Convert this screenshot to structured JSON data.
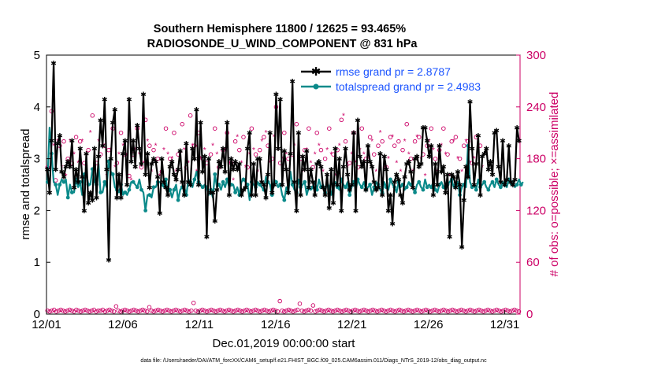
{
  "chart_data": {
    "type": "line",
    "title": "Southern Hemisphere 11800 / 12625 = 93.465%",
    "subtitle": "RADIOSONDE_U_WIND_COMPONENT @ 831 hPa",
    "xlabel": "Dec.01,2019 00:00:00 start",
    "ylabel": "rmse and totalspread",
    "y2label": "# of obs: o=possible; ×=assimilated",
    "footnote": "data file: /Users/raeder/DAI/ATM_forcXX/CAM6_setup/f.e21.FHIST_BGC.f09_025.CAM6assim.011/Diags_NTrS_2019-12/obs_diag_output.nc",
    "xlim": [
      1,
      32
    ],
    "ylim": [
      0,
      5
    ],
    "y2lim": [
      0,
      300
    ],
    "x_tick_labels": [
      "12/01",
      "12/06",
      "12/11",
      "12/16",
      "12/21",
      "12/26",
      "12/31"
    ],
    "x_tick_values": [
      1,
      6,
      11,
      16,
      21,
      26,
      31
    ],
    "y_ticks": [
      0,
      1,
      2,
      3,
      4,
      5
    ],
    "y2_ticks": [
      0,
      60,
      120,
      180,
      240,
      300
    ],
    "legend_position": "top-right",
    "colors": {
      "rmse": "#000000",
      "spread": "#0b8a8a",
      "obs": "#cc0066",
      "legend_text": "#1a53ff"
    },
    "series": [
      {
        "name": "rmse grand pr = 2.8787",
        "axis": "left",
        "marker": "star",
        "values": [
          2.8,
          2.35,
          3.35,
          4.85,
          2.8,
          3.3,
          3.45,
          2.75,
          2.65,
          2.85,
          2.95,
          2.85,
          3.35,
          2.45,
          2.8,
          2.55,
          3.2,
          2.65,
          2.0,
          3.1,
          2.15,
          2.35,
          2.2,
          3.2,
          2.25,
          3.05,
          3.75,
          3.25,
          4.15,
          2.8,
          1.05,
          3.0,
          3.7,
          3.95,
          2.25,
          2.7,
          2.25,
          3.1,
          3.35,
          2.5,
          4.15,
          2.95,
          3.35,
          2.85,
          3.65,
          3.2,
          2.9,
          4.25,
          2.7,
          3.1,
          2.45,
          2.9,
          3.0,
          2.95,
          2.65,
          1.95,
          3.0,
          2.55,
          2.45,
          2.3,
          2.85,
          2.95,
          2.7,
          2.6,
          2.8,
          3.15,
          2.55,
          2.3,
          3.3,
          2.55,
          2.5,
          3.2,
          3.0,
          3.95,
          2.5,
          3.7,
          2.75,
          3.05,
          1.5,
          3.0,
          2.35,
          2.35,
          1.8,
          2.4,
          2.95,
          2.85,
          3.2,
          2.75,
          3.7,
          2.3,
          3.0,
          2.8,
          2.95,
          2.8,
          2.9,
          2.3,
          2.4,
          2.45,
          3.2,
          3.5,
          2.3,
          2.9,
          2.3,
          3.0,
          3.0,
          2.55,
          2.5,
          2.25,
          2.7,
          3.5,
          2.35,
          2.5,
          4.25,
          3.2,
          4.15,
          2.5,
          3.15,
          2.8,
          2.35,
          3.1,
          4.5,
          2.55,
          2.0,
          3.5,
          2.3,
          3.05,
          2.8,
          3.15,
          2.45,
          2.8,
          2.55,
          2.3,
          2.9,
          2.95,
          2.85,
          2.45,
          2.3,
          2.7,
          2.05,
          2.8,
          2.15,
          3.2,
          2.5,
          3.0,
          2.0,
          2.85,
          3.2,
          2.7,
          2.4,
          2.5,
          3.5,
          2.0,
          3.75,
          3.05,
          2.85,
          2.95,
          2.4,
          3.25,
          2.95,
          2.85,
          2.55,
          2.4,
          2.45,
          3.1,
          2.3,
          3.05,
          2.8,
          2.0,
          2.3,
          1.75,
          2.55,
          2.7,
          2.6,
          2.3,
          2.15,
          2.65,
          2.9,
          2.95,
          2.75,
          2.45,
          3.0,
          3.05,
          2.85,
          2.9,
          3.6,
          3.6,
          3.35,
          3.05,
          3.25,
          2.3,
          2.9,
          2.5,
          3.25,
          2.75,
          2.85,
          2.35,
          2.7,
          1.5,
          2.7,
          2.65,
          2.45,
          2.75,
          2.5,
          1.3,
          2.2,
          2.85,
          2.65,
          4.1,
          3.2,
          2.5,
          2.9,
          3.45,
          2.3,
          3.05,
          3.1,
          3.2,
          2.8,
          2.95,
          2.7,
          3.5,
          3.55,
          2.85,
          2.55,
          3.35,
          2.5,
          2.6,
          3.25,
          2.55,
          2.5,
          2.6,
          3.6,
          3.35
        ]
      },
      {
        "name": "totalspread grand pr = 2.4983",
        "axis": "left",
        "marker": "dot",
        "values": [
          2.55,
          3.6,
          3.1,
          2.55,
          2.5,
          2.3,
          2.5,
          2.6,
          2.55,
          2.6,
          2.25,
          2.5,
          2.35,
          2.35,
          2.6,
          2.45,
          2.55,
          2.3,
          2.7,
          2.75,
          2.5,
          2.5,
          2.8,
          2.55,
          2.5,
          2.9,
          2.35,
          2.35,
          2.55,
          2.45,
          2.95,
          2.75,
          2.7,
          2.45,
          2.4,
          2.35,
          2.5,
          2.3,
          2.35,
          2.3,
          2.4,
          2.55,
          2.55,
          2.5,
          2.45,
          2.6,
          2.4,
          2.35,
          2.0,
          2.3,
          2.3,
          2.25,
          2.45,
          2.45,
          2.55,
          2.55,
          2.5,
          2.45,
          2.6,
          2.35,
          2.4,
          2.25,
          2.4,
          2.5,
          2.2,
          2.4,
          2.45,
          2.45,
          2.3,
          2.6,
          2.55,
          2.45,
          2.6,
          2.75,
          2.55,
          2.5,
          2.45,
          2.5,
          2.45,
          2.3,
          2.4,
          2.25,
          2.7,
          2.45,
          2.5,
          2.4,
          2.55,
          2.45,
          2.6,
          2.45,
          2.5,
          2.5,
          2.35,
          2.45,
          2.3,
          2.55,
          2.6,
          2.55,
          2.5,
          2.2,
          2.55,
          2.5,
          2.45,
          2.55,
          2.5,
          2.45,
          2.4,
          2.65,
          2.55,
          2.5,
          2.3,
          2.6,
          2.55,
          2.45,
          2.5,
          2.3,
          2.2,
          2.45,
          2.35,
          2.75,
          2.5,
          2.4,
          2.35,
          2.6,
          2.45,
          2.5,
          2.55,
          2.3,
          2.45,
          2.4,
          2.45,
          2.55,
          2.4,
          2.6,
          2.45,
          2.5,
          2.35,
          2.55,
          2.45,
          2.3,
          2.5,
          2.55,
          2.45,
          2.4,
          2.6,
          2.5,
          2.45,
          2.55,
          2.3,
          2.45,
          2.55,
          2.4,
          2.6,
          2.5,
          2.45,
          2.55,
          2.4,
          2.45,
          2.5,
          2.3,
          2.45,
          2.55,
          2.5,
          2.4,
          2.35,
          2.55,
          2.45,
          2.4,
          2.6,
          2.5,
          2.45,
          2.35,
          2.55,
          2.45,
          2.5,
          2.4,
          2.45,
          2.55,
          2.5,
          2.45,
          2.35,
          2.5,
          2.55,
          2.45,
          2.4,
          2.6,
          2.45,
          2.5,
          2.45,
          2.55,
          2.4,
          2.35,
          2.5,
          2.55,
          2.45,
          2.4,
          2.5,
          2.55,
          2.6,
          2.45,
          2.5,
          2.55,
          2.3,
          2.45,
          2.5,
          2.45,
          3.25,
          2.55,
          2.45,
          2.5,
          2.4,
          2.6,
          2.45,
          2.5,
          2.55,
          2.45,
          2.4,
          2.5,
          2.55,
          2.45,
          2.6,
          2.5,
          2.45,
          2.55,
          2.5,
          2.45,
          2.6,
          2.5,
          2.55,
          2.45,
          2.5,
          2.6,
          2.5,
          2.55
        ]
      },
      {
        "name": "obs possible",
        "axis": "right",
        "marker": "circle",
        "values": [
          170,
          160,
          235,
          205,
          155,
          210,
          195,
          180,
          200,
          170,
          180,
          210,
          175,
          195,
          205,
          185,
          200,
          215,
          175,
          180,
          190,
          220,
          230,
          180,
          175,
          210,
          185,
          225,
          195,
          170,
          190,
          200,
          215,
          180,
          175,
          195,
          210,
          205,
          185,
          170,
          160,
          165,
          185,
          200,
          215,
          195,
          170,
          185,
          225,
          210,
          195,
          175,
          190,
          205,
          180,
          170,
          165,
          200,
          215,
          195,
          180,
          190,
          210,
          175,
          185,
          195,
          220,
          200,
          170,
          185,
          230,
          205,
          195,
          175,
          210,
          190,
          180,
          200,
          175,
          165,
          185,
          205,
          215,
          195,
          170,
          180,
          190,
          200,
          210,
          185,
          175,
          165,
          200,
          215,
          190,
          185,
          205,
          180,
          170,
          195,
          215,
          200,
          185,
          175,
          190,
          210,
          205,
          220,
          195,
          185,
          180,
          215,
          240,
          200,
          175,
          190,
          210,
          195,
          180,
          170,
          185,
          205,
          220,
          195,
          180,
          175,
          190,
          200,
          215,
          185,
          170,
          195,
          210,
          205,
          190,
          175,
          180,
          200,
          215,
          195,
          185,
          170,
          190,
          205,
          225,
          245,
          200,
          180,
          175,
          195,
          210,
          185,
          170,
          200,
          215,
          195,
          180,
          190,
          205,
          210,
          185,
          175,
          195,
          220,
          200,
          180,
          170,
          190,
          205,
          215,
          195,
          185,
          200,
          175,
          190,
          210,
          220,
          195,
          180,
          175,
          200,
          215,
          205,
          190,
          185,
          170,
          195,
          210,
          215,
          200,
          180,
          175,
          190,
          205,
          215,
          195,
          185,
          170,
          200,
          210,
          205,
          190,
          180,
          175,
          195,
          210,
          200,
          185,
          175,
          190,
          205,
          215,
          195,
          180
        ]
      },
      {
        "name": "obs assimilated",
        "axis": "right",
        "marker": "asterisk",
        "values": [
          165,
          150,
          215,
          195,
          150,
          200,
          185,
          170,
          190,
          160,
          170,
          200,
          165,
          185,
          195,
          175,
          190,
          200,
          165,
          170,
          180,
          210,
          215,
          170,
          165,
          200,
          175,
          210,
          185,
          160,
          180,
          190,
          205,
          170,
          165,
          185,
          200,
          195,
          175,
          160,
          150,
          155,
          175,
          190,
          205,
          185,
          160,
          175,
          210,
          200,
          185,
          165,
          180,
          195,
          170,
          160,
          155,
          190,
          205,
          185,
          170,
          180,
          200,
          165,
          175,
          185,
          210,
          190,
          160,
          175,
          215,
          195,
          185,
          165,
          200,
          180,
          170,
          190,
          165,
          155,
          175,
          195,
          205,
          185,
          160,
          170,
          180,
          190,
          200,
          175,
          165,
          155,
          190,
          205,
          180,
          175,
          195,
          170,
          160,
          185,
          205,
          190,
          175,
          165,
          180,
          200,
          195,
          210,
          185,
          175,
          170,
          205,
          225,
          190,
          165,
          180,
          200,
          185,
          170,
          160,
          175,
          195,
          210,
          185,
          170,
          165,
          180,
          190,
          205,
          175,
          160,
          185,
          200,
          195,
          180,
          165,
          170,
          190,
          205,
          185,
          175,
          160,
          180,
          195,
          215,
          230,
          190,
          170,
          165,
          185,
          200,
          175,
          160,
          190,
          205,
          185,
          170,
          180,
          195,
          200,
          175,
          165,
          185,
          210,
          190,
          170,
          160,
          180,
          195,
          205,
          185,
          175,
          190,
          165,
          180,
          200,
          210,
          185,
          170,
          165,
          190,
          205,
          195,
          180,
          175,
          160,
          185,
          200,
          205,
          190,
          170,
          165,
          180,
          195,
          205,
          185,
          175,
          160,
          190,
          200,
          195,
          180,
          170,
          165,
          185,
          200,
          190,
          175,
          165,
          180,
          195,
          205,
          185,
          170
        ]
      }
    ],
    "low_counts": [
      4,
      3,
      4,
      5,
      3,
      4,
      5,
      4,
      3,
      4,
      5,
      4,
      3,
      5,
      4,
      3,
      4,
      5,
      4,
      3,
      4,
      5,
      3,
      4,
      4,
      5,
      3,
      4,
      5,
      4,
      3,
      9,
      4,
      3,
      4,
      5,
      4,
      3,
      4,
      5,
      4,
      3,
      4,
      5,
      4,
      3,
      8,
      4,
      3,
      4,
      5,
      4,
      3,
      4,
      5,
      4,
      3,
      4,
      5,
      4,
      3,
      4,
      5,
      4,
      3,
      4,
      13,
      4,
      3,
      4,
      5,
      4,
      3,
      4,
      5,
      4,
      3,
      4,
      5,
      4,
      3,
      4,
      5,
      4,
      3,
      4,
      5,
      4,
      3,
      4,
      5,
      4,
      3,
      4,
      5,
      4,
      3,
      4,
      5,
      4,
      3,
      4,
      5,
      4,
      3,
      15,
      4,
      3,
      4,
      5,
      4,
      3,
      4,
      5,
      12,
      4,
      3,
      4,
      5,
      4,
      10,
      3,
      4,
      5,
      4,
      3,
      4,
      5,
      4,
      3,
      4,
      5,
      4,
      3,
      4,
      5,
      4,
      3,
      4,
      5,
      4,
      3,
      4,
      5,
      4,
      3,
      4,
      5,
      4,
      3,
      4,
      5,
      4,
      3,
      4,
      5,
      4,
      3,
      4,
      5,
      4,
      3,
      4,
      5,
      4,
      3,
      4,
      5,
      4,
      3,
      4,
      5,
      4,
      3,
      4,
      5,
      4,
      3,
      4,
      5,
      4,
      3,
      4,
      5,
      4,
      3,
      4,
      5,
      4,
      3,
      4,
      5,
      4,
      3,
      4,
      5,
      4,
      3,
      4,
      5,
      4,
      3,
      4,
      5,
      4,
      3,
      4,
      5,
      4,
      3,
      4,
      5,
      4,
      3
    ]
  }
}
